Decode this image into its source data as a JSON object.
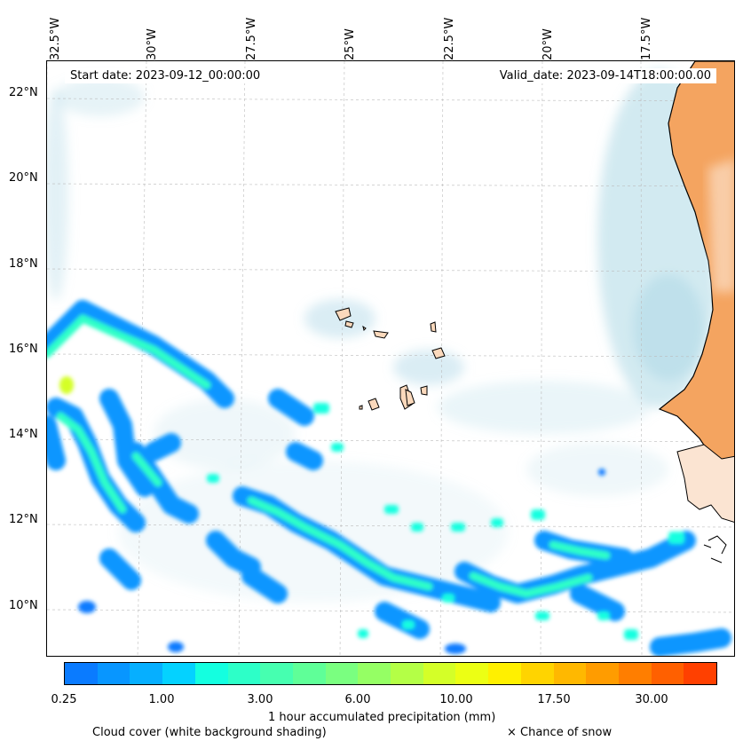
{
  "map": {
    "start_date_label": "Start date: 2023-09-12_00:00:00",
    "valid_date_label": "Valid_date: 2023-09-14T18:00:00.00",
    "longitude_labels": [
      "32.5°W",
      "30°W",
      "27.5°W",
      "25°W",
      "22.5°W",
      "20°W",
      "17.5°W"
    ],
    "latitude_labels": [
      "22°N",
      "20°N",
      "18°N",
      "16°N",
      "14°N",
      "12°N",
      "10°N"
    ],
    "colors": {
      "land": "#f4a460",
      "cloud": "#add8e6",
      "coast": "#000000"
    }
  },
  "colorbar": {
    "colors": [
      "#0a7bff",
      "#0896ff",
      "#06afff",
      "#04d2ff",
      "#14ffe0",
      "#2dffc8",
      "#46ffb0",
      "#5fff98",
      "#7aff80",
      "#95ff64",
      "#b4ff46",
      "#d4ff28",
      "#ecff14",
      "#fff000",
      "#ffd400",
      "#ffb800",
      "#ff9c00",
      "#ff7e00",
      "#ff6000",
      "#ff4000"
    ],
    "tick_labels": [
      "0.25",
      "1.00",
      "3.00",
      "6.00",
      "10.00",
      "17.50",
      "30.00"
    ],
    "label": "1 hour accumulated precipitation (mm)"
  },
  "legend": {
    "cloud_cover": "Cloud cover (white background shading)",
    "snow": "× Chance of snow"
  }
}
